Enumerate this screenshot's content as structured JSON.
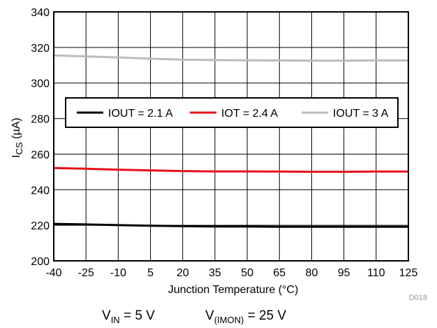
{
  "chart_data": {
    "type": "line",
    "x_ticks": [
      "-40",
      "-25",
      "-10",
      "5",
      "20",
      "35",
      "50",
      "65",
      "80",
      "95",
      "110",
      "125"
    ],
    "y_ticks": [
      "200",
      "220",
      "240",
      "260",
      "280",
      "300",
      "320",
      "340"
    ],
    "xlim": [
      -40,
      125
    ],
    "ylim": [
      200,
      340
    ],
    "xlabel": "Junction Temperature (°C)",
    "ylabel": {
      "main": "I",
      "sub": "CS",
      "unit": " (µA)"
    },
    "grid": true,
    "legend_position": "inside-top",
    "series": [
      {
        "name": "IOUT = 2.1 A",
        "color": "#000000",
        "x": [
          -40,
          -25,
          -10,
          5,
          20,
          35,
          50,
          65,
          80,
          95,
          110,
          125
        ],
        "y": [
          220.8,
          220.5,
          220.1,
          219.8,
          219.5,
          219.3,
          219.3,
          219.2,
          219.2,
          219.2,
          219.2,
          219.2
        ]
      },
      {
        "name": "IOT = 2.4 A",
        "color": "#e8101b",
        "x": [
          -40,
          -25,
          -10,
          5,
          20,
          35,
          50,
          65,
          80,
          95,
          110,
          125
        ],
        "y": [
          252.2,
          251.8,
          251.3,
          250.9,
          250.5,
          250.3,
          250.3,
          250.2,
          250.1,
          250.1,
          250.2,
          250.2
        ]
      },
      {
        "name": "IOUT = 3 A",
        "color": "#bbbbbb",
        "x": [
          -40,
          -25,
          -10,
          5,
          20,
          35,
          50,
          65,
          80,
          95,
          110,
          125
        ],
        "y": [
          315.5,
          315.0,
          314.4,
          313.7,
          313.1,
          312.9,
          312.8,
          312.7,
          312.6,
          312.6,
          312.7,
          312.7
        ]
      }
    ],
    "figure_id": "D018",
    "conditions": [
      {
        "main": "V",
        "sub": "IN",
        "rest": " = 5 V"
      },
      {
        "main": "V",
        "sub": "(IMON)",
        "rest": " = 25 V"
      }
    ]
  }
}
